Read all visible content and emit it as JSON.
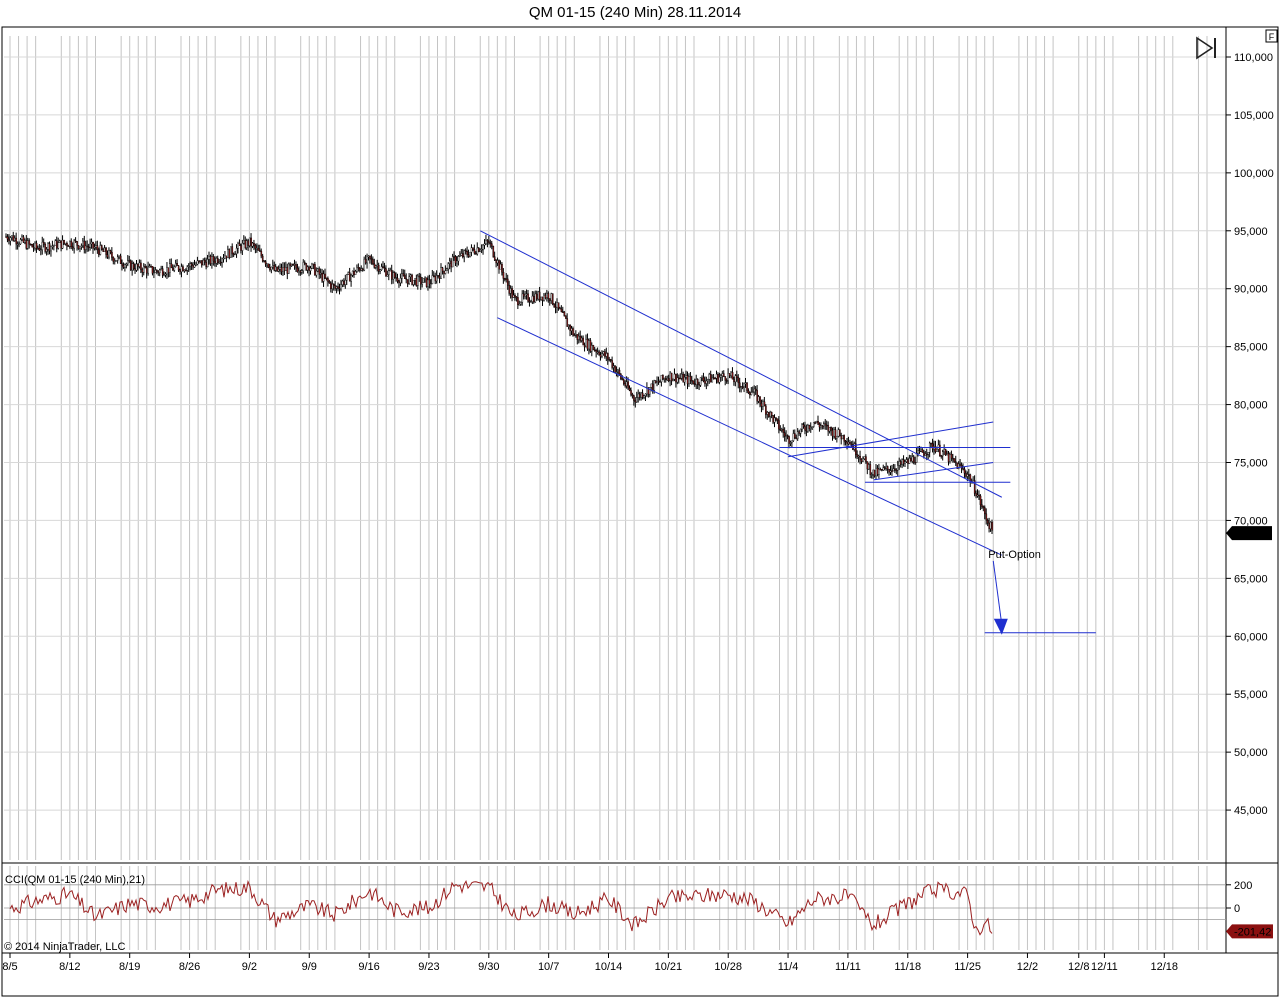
{
  "window": {
    "title": "QM 01-15 (240 Min)  28.11.2014",
    "copyright": "© 2014 NinjaTrader, LLC",
    "flag_label": "F",
    "play_icon": "skip-forward-icon"
  },
  "colors": {
    "trendline": "#1f2fcf",
    "candle_wick": "#000000",
    "candle_body": "#8b1a1a",
    "cci_line": "#9b2020",
    "price_marker_bg": "#000000",
    "cci_marker_bg": "#8b1010"
  },
  "chart_data": [
    {
      "type": "candlestick",
      "title": "QM 01-15 (240 Min)  28.11.2014",
      "ylim": [
        40000,
        112000
      ],
      "yticks": [
        45000,
        50000,
        55000,
        60000,
        65000,
        70000,
        75000,
        80000,
        85000,
        90000,
        95000,
        100000,
        105000,
        110000
      ],
      "ytick_labels": [
        "45,000",
        "50,000",
        "55,000",
        "60,000",
        "65,000",
        "70,000",
        "75,000",
        "80,000",
        "85,000",
        "90,000",
        "95,000",
        "100,000",
        "105,000",
        "110,000"
      ],
      "xtick_labels": [
        "8/5",
        "8/12",
        "8/19",
        "8/26",
        "9/2",
        "9/9",
        "9/16",
        "9/23",
        "9/30",
        "10/7",
        "10/14",
        "10/21",
        "10/28",
        "11/4",
        "11/11",
        "11/18",
        "11/25",
        "12/2",
        "12/8",
        "12/11",
        "12/18"
      ],
      "last_price": "68,900",
      "grid": true,
      "series": [
        {
          "x": [
            "8/5",
            "8/8",
            "8/12",
            "8/15",
            "8/19",
            "8/22",
            "8/26",
            "8/29",
            "9/2",
            "9/5",
            "9/9",
            "9/12",
            "9/16",
            "9/19",
            "9/23",
            "9/26",
            "9/30",
            "10/3",
            "10/7",
            "10/10",
            "10/14",
            "10/17",
            "10/21",
            "10/24",
            "10/28",
            "10/31",
            "11/4",
            "11/7",
            "11/11",
            "11/14",
            "11/18",
            "11/21",
            "11/25",
            "11/26",
            "11/27",
            "11/28"
          ],
          "values": [
            94500,
            93500,
            94000,
            93500,
            92000,
            91500,
            92000,
            92500,
            94000,
            91500,
            92000,
            90000,
            92500,
            91000,
            90500,
            92500,
            94000,
            89000,
            89500,
            86000,
            84000,
            80500,
            82500,
            82000,
            82500,
            81000,
            77000,
            78500,
            77000,
            74000,
            75000,
            76500,
            74000,
            72500,
            70500,
            68900
          ]
        }
      ],
      "drawings": {
        "channel_upper": {
          "from": [
            "9/29",
            95000
          ],
          "to": [
            "11/29",
            72000
          ]
        },
        "channel_lower": {
          "from": [
            "10/1",
            87500
          ],
          "to": [
            "11/29",
            67000
          ]
        },
        "wedge_upper": {
          "from": [
            "11/4",
            75500
          ],
          "to": [
            "11/28",
            78500
          ]
        },
        "wedge_lower": {
          "from": [
            "11/14",
            73500
          ],
          "to": [
            "11/28",
            75000
          ]
        },
        "resistance": {
          "from": [
            "11/3",
            76300
          ],
          "to": [
            "11/30",
            76300
          ]
        },
        "support": {
          "from": [
            "11/13",
            73300
          ],
          "to": [
            "11/30",
            73300
          ]
        },
        "target": {
          "from": [
            "11/27",
            60300
          ],
          "to": [
            "12/10",
            60300
          ]
        },
        "arrow": {
          "from": [
            "11/28",
            66500
          ],
          "to": [
            "11/29",
            61000
          ]
        },
        "annotation": "Put-Option"
      }
    },
    {
      "type": "line",
      "title": "CCI(QM 01-15 (240 Min),21)",
      "ylim": [
        -250,
        260
      ],
      "yticks": [
        200,
        0,
        -100
      ],
      "ytick_labels": [
        "200",
        "0",
        ""
      ],
      "last_value": "-201,42",
      "series": [
        {
          "name": "CCI",
          "x": [
            "8/5",
            "8/8",
            "8/12",
            "8/15",
            "8/19",
            "8/22",
            "8/26",
            "8/29",
            "9/2",
            "9/5",
            "9/9",
            "9/12",
            "9/16",
            "9/19",
            "9/23",
            "9/26",
            "9/30",
            "10/3",
            "10/7",
            "10/10",
            "10/14",
            "10/17",
            "10/21",
            "10/24",
            "10/28",
            "10/31",
            "11/4",
            "11/7",
            "11/11",
            "11/14",
            "11/18",
            "11/21",
            "11/25",
            "11/26",
            "11/27",
            "11/28"
          ],
          "values": [
            0,
            60,
            120,
            -80,
            40,
            20,
            60,
            150,
            180,
            -100,
            20,
            -60,
            150,
            -20,
            0,
            200,
            180,
            -80,
            40,
            -60,
            80,
            -150,
            80,
            100,
            120,
            60,
            -140,
            80,
            100,
            -150,
            40,
            160,
            120,
            -200,
            -120,
            -201
          ]
        }
      ]
    }
  ]
}
